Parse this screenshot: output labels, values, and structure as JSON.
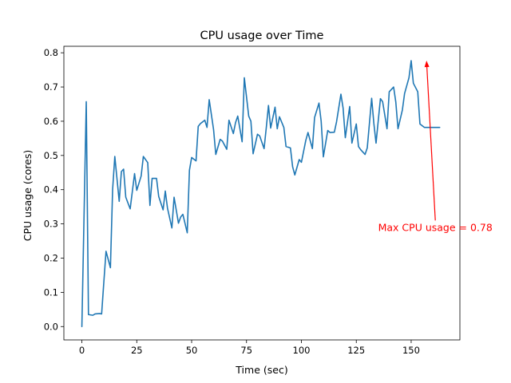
{
  "chart_data": {
    "type": "line",
    "title": "CPU usage over Time",
    "xlabel": "Time (sec)",
    "ylabel": "CPU usage (cores)",
    "xlim": [
      -8.2,
      172.2
    ],
    "ylim": [
      -0.039,
      0.819
    ],
    "xticks": [
      0,
      25,
      50,
      75,
      100,
      125,
      150
    ],
    "yticks": [
      0.0,
      0.1,
      0.2,
      0.3,
      0.4,
      0.5,
      0.6,
      0.7,
      0.8
    ],
    "xtick_labels": [
      "0",
      "25",
      "50",
      "75",
      "100",
      "125",
      "150"
    ],
    "ytick_labels": [
      "0.0",
      "0.1",
      "0.2",
      "0.3",
      "0.4",
      "0.5",
      "0.6",
      "0.7",
      "0.8"
    ],
    "grid": false,
    "colors": {
      "line": "#1f77b4",
      "annotation": "#ff0000"
    },
    "series": [
      {
        "x": [
          0,
          2,
          3,
          5,
          6,
          8,
          9,
          10,
          11,
          13,
          14,
          15,
          17,
          18,
          19,
          20,
          22,
          24,
          25,
          27,
          28,
          30,
          31,
          32,
          34,
          35,
          37,
          38,
          39,
          41,
          42,
          44,
          45,
          46,
          48,
          49,
          50,
          52,
          53,
          54,
          56,
          57,
          58,
          60,
          61,
          63,
          64,
          66,
          67,
          69,
          70,
          71,
          73,
          74,
          76,
          77,
          78,
          80,
          81,
          83,
          84,
          85,
          86,
          88,
          89,
          90,
          92,
          93,
          95,
          96,
          97,
          99,
          100,
          102,
          103,
          105,
          106,
          108,
          109,
          110,
          112,
          113,
          115,
          116,
          118,
          119,
          120,
          122,
          123,
          125,
          126,
          127,
          129,
          130,
          132,
          133,
          134,
          136,
          137,
          139,
          140,
          142,
          143,
          144,
          146,
          147,
          149,
          150,
          151,
          153,
          154,
          156,
          157,
          158,
          160,
          161,
          163
        ],
        "values": [
          0.0,
          0.657,
          0.035,
          0.033,
          0.037,
          0.038,
          0.037,
          0.13,
          0.22,
          0.172,
          0.4,
          0.497,
          0.366,
          0.453,
          0.46,
          0.378,
          0.344,
          0.447,
          0.398,
          0.44,
          0.497,
          0.479,
          0.354,
          0.433,
          0.433,
          0.38,
          0.341,
          0.396,
          0.346,
          0.288,
          0.378,
          0.302,
          0.32,
          0.328,
          0.274,
          0.457,
          0.494,
          0.484,
          0.585,
          0.593,
          0.603,
          0.582,
          0.663,
          0.575,
          0.503,
          0.547,
          0.542,
          0.518,
          0.603,
          0.564,
          0.596,
          0.615,
          0.54,
          0.727,
          0.615,
          0.6,
          0.505,
          0.562,
          0.557,
          0.52,
          0.581,
          0.646,
          0.58,
          0.641,
          0.578,
          0.613,
          0.582,
          0.526,
          0.522,
          0.467,
          0.443,
          0.488,
          0.48,
          0.544,
          0.567,
          0.52,
          0.611,
          0.653,
          0.6,
          0.496,
          0.573,
          0.567,
          0.568,
          0.598,
          0.679,
          0.638,
          0.552,
          0.643,
          0.536,
          0.592,
          0.526,
          0.517,
          0.503,
          0.522,
          0.667,
          0.594,
          0.536,
          0.666,
          0.657,
          0.578,
          0.686,
          0.7,
          0.656,
          0.578,
          0.633,
          0.681,
          0.727,
          0.777,
          0.711,
          0.686,
          0.592,
          0.582,
          0.582,
          0.582,
          0.582,
          0.582,
          0.582
        ]
      }
    ],
    "annotation": {
      "text": "Max CPU usage = 0.78",
      "point": [
        157,
        0.777
      ],
      "text_pos": [
        161,
        0.31
      ]
    }
  }
}
